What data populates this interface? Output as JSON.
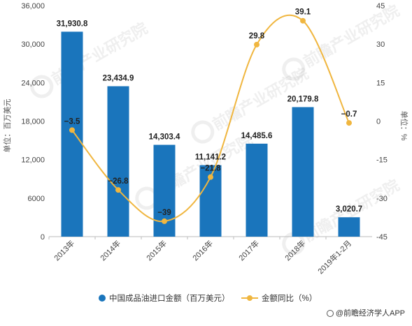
{
  "chart_data": {
    "type": "bar",
    "categories": [
      "2013年",
      "2014年",
      "2015年",
      "2016年",
      "2017年",
      "2018年",
      "2019年1-2月"
    ],
    "series": [
      {
        "name": "中国成品油进口金额（百万美元）",
        "type": "bar",
        "axis": "left",
        "values": [
          31930.8,
          23434.9,
          14303.4,
          11141.2,
          14485.6,
          20179.8,
          3020.7
        ],
        "labels": [
          "31,930.8",
          "23,434.9",
          "14,303.4",
          "11,141.2",
          "14,485.6",
          "20,179.8",
          "3,020.7"
        ]
      },
      {
        "name": "金额同比（%）",
        "type": "line",
        "axis": "right",
        "values": [
          -3.5,
          -26.8,
          -39,
          -21.8,
          29.8,
          39.1,
          -0.7
        ],
        "labels": [
          "-3.5",
          "-26.8",
          "-39",
          "-21.8",
          "29.8",
          "39.1",
          "-0.7"
        ]
      }
    ],
    "y_left": {
      "label": "单位：百万美元",
      "ylim": [
        0,
        36000
      ],
      "ticks": [
        "0",
        "6000",
        "12,000",
        "18,000",
        "24,000",
        "30,000",
        "36,000"
      ]
    },
    "y_right": {
      "label": "单位：%",
      "ylim": [
        -45,
        45
      ],
      "ticks": [
        "-45",
        "-30",
        "-15",
        "0",
        "15",
        "30",
        "45"
      ]
    },
    "grid": false,
    "legend_position": "bottom"
  },
  "colors": {
    "bar": "#1a75bc",
    "line": "#f0b63f",
    "axis": "#bbbbbb"
  },
  "watermark": "前瞻产业研究院",
  "footer": {
    "source": "@前瞻经济学人APP"
  }
}
